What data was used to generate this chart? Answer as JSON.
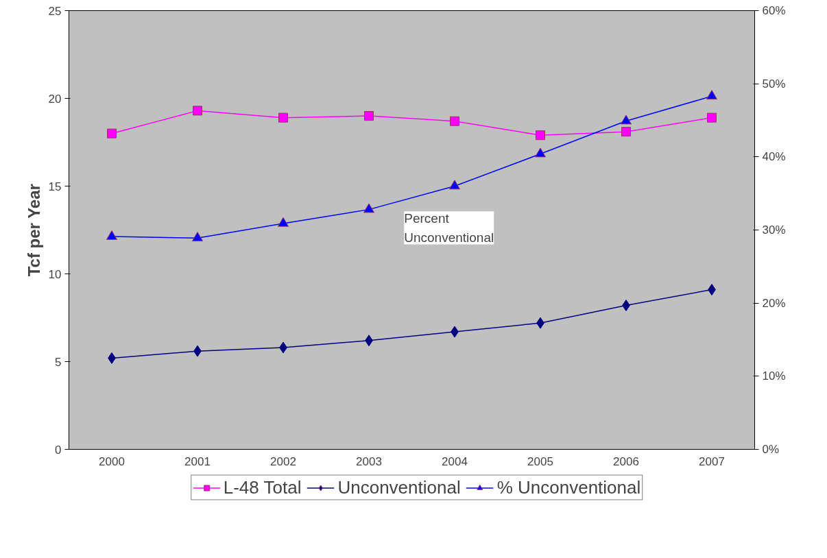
{
  "chart_data": {
    "type": "line",
    "ylabel": "Tcf per Year",
    "categories": [
      "2000",
      "2001",
      "2002",
      "2003",
      "2004",
      "2005",
      "2006",
      "2007"
    ],
    "series": [
      {
        "name": "L-48 Total",
        "color": "#ff00ff",
        "marker": "square",
        "values": [
          18.0,
          19.3,
          18.9,
          19.0,
          18.7,
          17.9,
          18.1,
          18.9
        ]
      },
      {
        "name": "Unconventional",
        "color": "#000080",
        "marker": "diamond",
        "values": [
          5.2,
          5.6,
          5.8,
          6.2,
          6.7,
          7.2,
          8.2,
          9.1
        ]
      },
      {
        "name": "% Unconventional",
        "color": "#0000ff",
        "marker": "triangle",
        "axis": "y2",
        "values": [
          29.1,
          28.9,
          30.9,
          32.8,
          36.0,
          40.4,
          44.9,
          48.3
        ]
      }
    ],
    "ylim": [
      0,
      25
    ],
    "yticks": [
      0,
      5,
      10,
      15,
      20,
      25
    ],
    "y2lim": [
      0,
      60
    ],
    "y2ticks": [
      {
        "value": 0,
        "label": "0%"
      },
      {
        "value": 10,
        "label": "10%"
      },
      {
        "value": 20,
        "label": "20%"
      },
      {
        "value": 30,
        "label": "30%"
      },
      {
        "value": 40,
        "label": "40%"
      },
      {
        "value": 50,
        "label": "50%"
      },
      {
        "value": 60,
        "label": "60%"
      }
    ],
    "annotations": [
      "Percent\nUnconventional"
    ],
    "grid": false,
    "legend": "bottom"
  }
}
